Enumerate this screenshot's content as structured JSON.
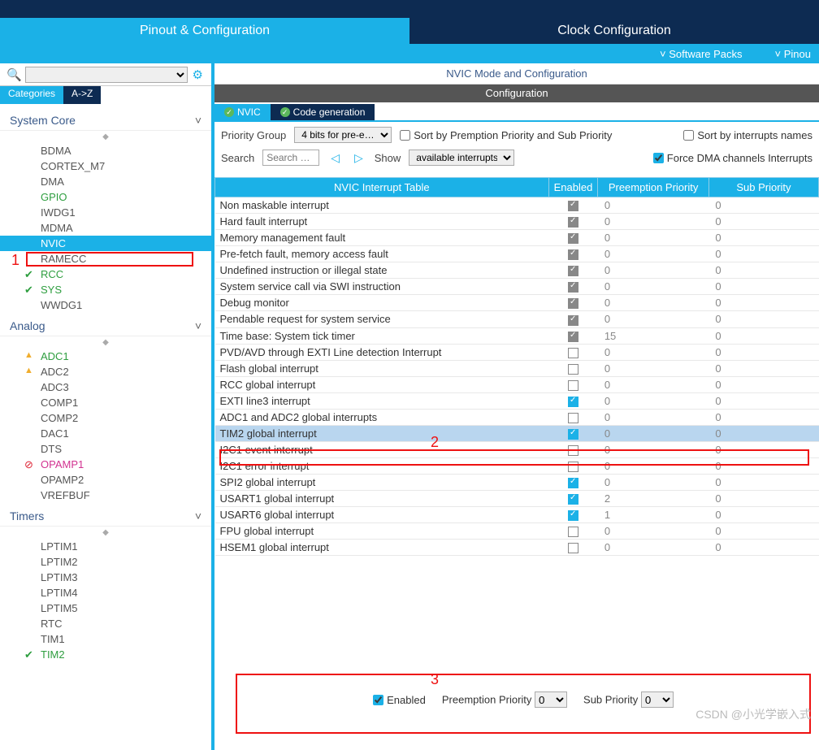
{
  "tabs": {
    "pinout": "Pinout & Configuration",
    "clock": "Clock Configuration"
  },
  "subbar": {
    "packs": "Software Packs",
    "pinout": "Pinou"
  },
  "catTabs": {
    "categories": "Categories",
    "az": "A->Z"
  },
  "groups": {
    "systemCore": {
      "label": "System Core",
      "items": [
        "BDMA",
        "CORTEX_M7",
        "DMA",
        "GPIO",
        "IWDG1",
        "MDMA",
        "NVIC",
        "RAMECC",
        "RCC",
        "SYS",
        "WWDG1"
      ]
    },
    "analog": {
      "label": "Analog",
      "items": [
        "ADC1",
        "ADC2",
        "ADC3",
        "COMP1",
        "COMP2",
        "DAC1",
        "DTS",
        "OPAMP1",
        "OPAMP2",
        "VREFBUF"
      ]
    },
    "timers": {
      "label": "Timers",
      "items": [
        "LPTIM1",
        "LPTIM2",
        "LPTIM3",
        "LPTIM4",
        "LPTIM5",
        "RTC",
        "TIM1",
        "TIM2"
      ]
    }
  },
  "modeTitle": "NVIC Mode and Configuration",
  "configBar": "Configuration",
  "paramTabs": {
    "nvic": "NVIC",
    "codegen": "Code generation"
  },
  "filters": {
    "priorityGroupLabel": "Priority Group",
    "priorityGroup": "4 bits for pre-e…",
    "sortPriority": "Sort by Premption Priority and Sub Priority",
    "sortNames": "Sort by interrupts names",
    "searchLabel": "Search",
    "searchPlaceholder": "Search …",
    "showLabel": "Show",
    "showValue": "available interrupts",
    "forceDma": "Force DMA channels Interrupts"
  },
  "tableHeaders": {
    "name": "NVIC Interrupt Table",
    "enabled": "Enabled",
    "preempt": "Preemption Priority",
    "sub": "Sub Priority"
  },
  "rows": [
    {
      "n": "Non maskable interrupt",
      "e": "locked",
      "p": "0",
      "s": "0"
    },
    {
      "n": "Hard fault interrupt",
      "e": "locked",
      "p": "0",
      "s": "0"
    },
    {
      "n": "Memory management fault",
      "e": "locked",
      "p": "0",
      "s": "0"
    },
    {
      "n": "Pre-fetch fault, memory access fault",
      "e": "locked",
      "p": "0",
      "s": "0"
    },
    {
      "n": "Undefined instruction or illegal state",
      "e": "locked",
      "p": "0",
      "s": "0"
    },
    {
      "n": "System service call via SWI instruction",
      "e": "locked",
      "p": "0",
      "s": "0"
    },
    {
      "n": "Debug monitor",
      "e": "locked",
      "p": "0",
      "s": "0"
    },
    {
      "n": "Pendable request for system service",
      "e": "locked",
      "p": "0",
      "s": "0"
    },
    {
      "n": "Time base: System tick timer",
      "e": "locked",
      "p": "15",
      "s": "0"
    },
    {
      "n": "PVD/AVD through EXTI Line detection Interrupt",
      "e": "off",
      "p": "0",
      "s": "0"
    },
    {
      "n": "Flash global interrupt",
      "e": "off",
      "p": "0",
      "s": "0"
    },
    {
      "n": "RCC global interrupt",
      "e": "off",
      "p": "0",
      "s": "0"
    },
    {
      "n": "EXTI line3 interrupt",
      "e": "on",
      "p": "0",
      "s": "0"
    },
    {
      "n": "ADC1 and ADC2 global interrupts",
      "e": "off",
      "p": "0",
      "s": "0"
    },
    {
      "n": "TIM2 global interrupt",
      "e": "on",
      "p": "0",
      "s": "0",
      "sel": true
    },
    {
      "n": "I2C1 event interrupt",
      "e": "off",
      "p": "0",
      "s": "0"
    },
    {
      "n": "I2C1 error interrupt",
      "e": "off",
      "p": "0",
      "s": "0"
    },
    {
      "n": "SPI2 global interrupt",
      "e": "on",
      "p": "0",
      "s": "0"
    },
    {
      "n": "USART1 global interrupt",
      "e": "on",
      "p": "2",
      "s": "0"
    },
    {
      "n": "USART6 global interrupt",
      "e": "on",
      "p": "1",
      "s": "0"
    },
    {
      "n": "FPU global interrupt",
      "e": "off",
      "p": "0",
      "s": "0"
    },
    {
      "n": "HSEM1 global interrupt",
      "e": "off",
      "p": "0",
      "s": "0"
    }
  ],
  "bottom": {
    "enabled": "Enabled",
    "preempt": "Preemption Priority",
    "preemptVal": "0",
    "sub": "Sub Priority",
    "subVal": "0"
  },
  "annotations": {
    "a1": "1",
    "a2": "2",
    "a3": "3"
  },
  "watermark": "CSDN @小光学嵌入式"
}
